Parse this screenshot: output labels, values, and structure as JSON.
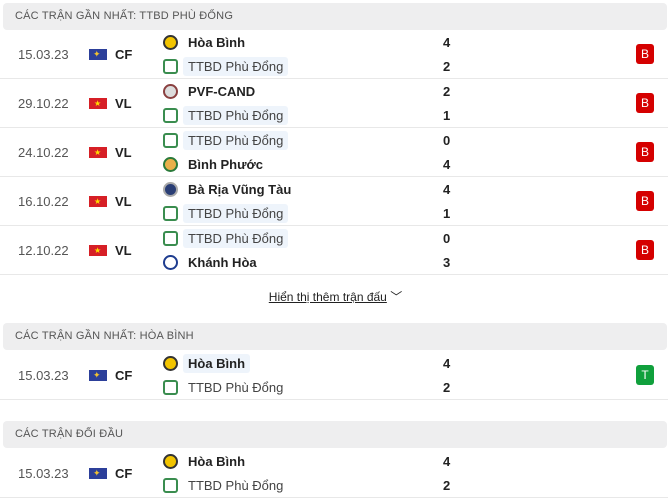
{
  "colors": {
    "loss": "#d50000",
    "win": "#10a03c"
  },
  "sections": [
    {
      "title": "CÁC TRẬN GẦN NHẤT: TTBD PHÙ ĐỔNG",
      "matches": [
        {
          "date": "15.03.23",
          "flag": "cf",
          "league": "CF",
          "home": "Hòa Bình",
          "home_logo": "hb",
          "away": "TTBD Phù Đổng",
          "away_logo": "pd",
          "hs": "4",
          "as": "2",
          "hl": "away",
          "result": "B"
        },
        {
          "date": "29.10.22",
          "flag": "vn",
          "league": "VL",
          "home": "PVF-CAND",
          "home_logo": "pvf",
          "away": "TTBD Phù Đổng",
          "away_logo": "pd",
          "hs": "2",
          "as": "1",
          "hl": "away",
          "result": "B"
        },
        {
          "date": "24.10.22",
          "flag": "vn",
          "league": "VL",
          "home": "TTBD Phù Đổng",
          "home_logo": "pd",
          "away": "Bình Phước",
          "away_logo": "bp",
          "hs": "0",
          "as": "4",
          "hl": "home",
          "result": "B"
        },
        {
          "date": "16.10.22",
          "flag": "vn",
          "league": "VL",
          "home": "Bà Rịa Vũng Tàu",
          "home_logo": "brvt",
          "away": "TTBD Phù Đổng",
          "away_logo": "pd",
          "hs": "4",
          "as": "1",
          "hl": "away",
          "result": "B"
        },
        {
          "date": "12.10.22",
          "flag": "vn",
          "league": "VL",
          "home": "TTBD Phù Đổng",
          "home_logo": "pd",
          "away": "Khánh Hòa",
          "away_logo": "kh",
          "hs": "0",
          "as": "3",
          "hl": "home",
          "result": "B"
        }
      ]
    },
    {
      "title": "CÁC TRẬN GẦN NHẤT: HÒA BÌNH",
      "matches": [
        {
          "date": "15.03.23",
          "flag": "cf",
          "league": "CF",
          "home": "Hòa Bình",
          "home_logo": "hb",
          "away": "TTBD Phù Đổng",
          "away_logo": "pd",
          "hs": "4",
          "as": "2",
          "hl": "home",
          "result": "T"
        }
      ]
    },
    {
      "title": "CÁC TRẬN ĐỐI ĐẦU",
      "matches": [
        {
          "date": "15.03.23",
          "flag": "cf",
          "league": "CF",
          "home": "Hòa Bình",
          "home_logo": "hb",
          "away": "TTBD Phù Đổng",
          "away_logo": "pd",
          "hs": "4",
          "as": "2",
          "hl": "none",
          "result": ""
        }
      ]
    }
  ],
  "show_more": "Hiển thị thêm trận đấu"
}
